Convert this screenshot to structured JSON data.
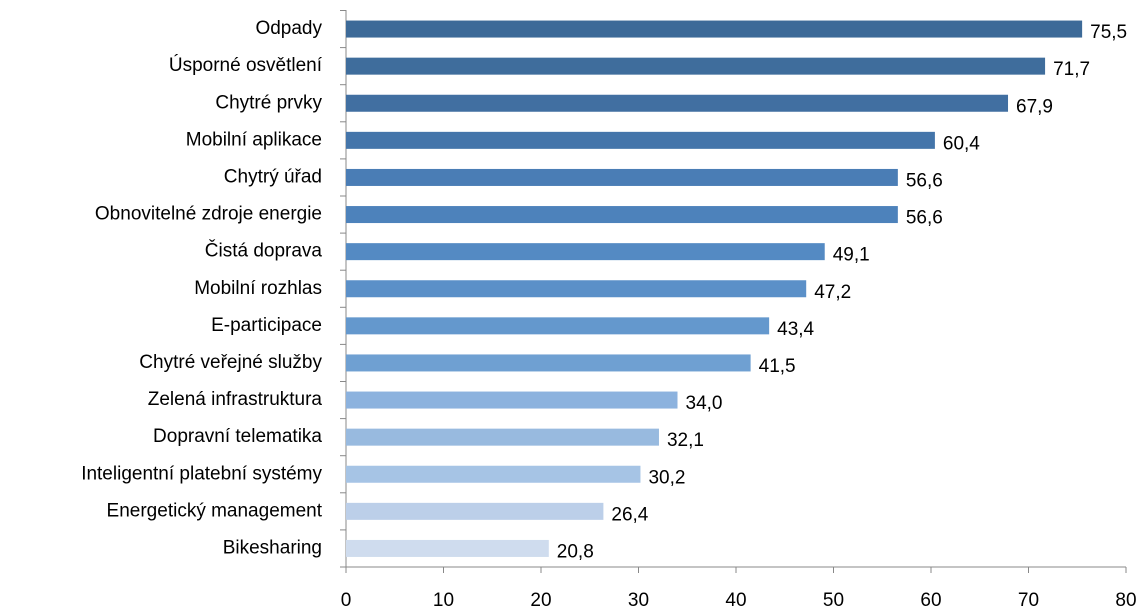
{
  "chart_data": {
    "type": "hbar",
    "categories": [
      "Odpady",
      "Úsporné osvětlení",
      "Chytré prvky",
      "Mobilní aplikace",
      "Chytrý úřad",
      "Obnovitelné zdroje energie",
      "Čistá doprava",
      "Mobilní rozhlas",
      "E-participace",
      "Chytré veřejné služby",
      "Zelená infrastruktura",
      "Dopravní telematika",
      "Inteligentní platební systémy",
      "Energetický management",
      "Bikesharing"
    ],
    "values": [
      75.5,
      71.7,
      67.9,
      60.4,
      56.6,
      56.6,
      49.1,
      47.2,
      43.4,
      41.5,
      34.0,
      32.1,
      30.2,
      26.4,
      20.8
    ],
    "value_labels": [
      "75,5",
      "71,7",
      "67,9",
      "60,4",
      "56,6",
      "56,6",
      "49,1",
      "47,2",
      "43,4",
      "41,5",
      "34,0",
      "32,1",
      "30,2",
      "26,4",
      "20,8"
    ],
    "colors": [
      "#3d6a98",
      "#3f6d9c",
      "#416fa1",
      "#4475aa",
      "#4a7db5",
      "#4d82bb",
      "#548ac3",
      "#5b90c8",
      "#6498cd",
      "#6fa0d2",
      "#8cb2de",
      "#98badf",
      "#a6c4e5",
      "#bccfe9",
      "#cfdcee"
    ],
    "xlim": [
      0,
      80
    ],
    "xticks": [
      0,
      10,
      20,
      30,
      40,
      50,
      60,
      70,
      80
    ]
  }
}
